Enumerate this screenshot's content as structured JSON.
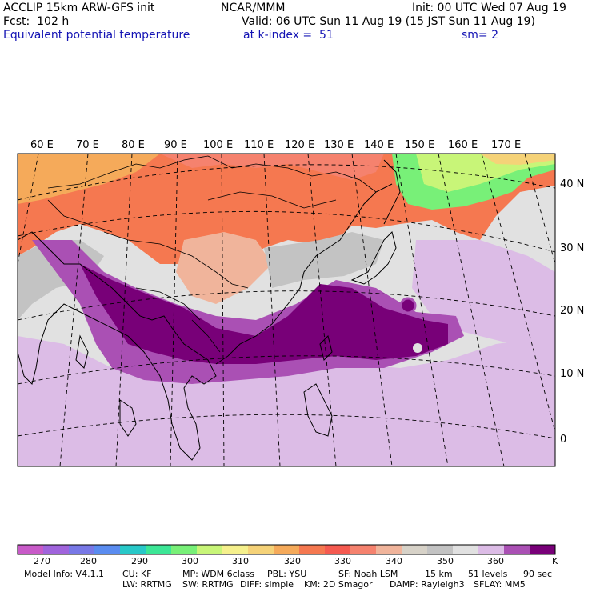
{
  "header": {
    "model_line": "ACCLIP 15km ARW-GFS init",
    "forecast": "Fcst:  102 h",
    "field": "Equivalent potential temperature",
    "center": "NCAR/MMM",
    "init": "Init: 00 UTC Wed 07 Aug 19",
    "valid": "Valid: 06 UTC Sun 11 Aug 19 (15 JST Sun 11 Aug 19)",
    "level": "at k-index =  51",
    "smoothing": "sm= 2"
  },
  "map": {
    "lon_labels": [
      "60 E",
      "70 E",
      "80 E",
      "90 E",
      "100 E",
      "110 E",
      "120 E",
      "130 E",
      "140 E",
      "150 E",
      "160 E",
      "170 E"
    ],
    "lat_labels": [
      "40 N",
      "30 N",
      "20 N",
      "10 N",
      "0"
    ]
  },
  "colorbar": {
    "tick_labels": [
      "270",
      "280",
      "290",
      "300",
      "310",
      "320",
      "330",
      "340",
      "350",
      "360"
    ],
    "unit": "K",
    "colors": [
      "#c85ac8",
      "#a064dc",
      "#7878e6",
      "#5a8cf0",
      "#28c8c8",
      "#3ce696",
      "#78f078",
      "#c8f578",
      "#f5f08c",
      "#f5d278",
      "#f5aa5a",
      "#f57850",
      "#f55a50",
      "#f5826e",
      "#f0b49b",
      "#d7d2c8",
      "#c3c3c3",
      "#e1e1e1",
      "#dcbce6",
      "#aa50b4",
      "#780078"
    ],
    "accent": "#1414b4"
  },
  "footer": {
    "line1": [
      "Model Info: V4.1.1",
      "CU: KF",
      "MP: WDM 6class",
      "PBL: YSU",
      "SF: Noah LSM",
      "15 km",
      "51 levels",
      "90 sec"
    ],
    "line2": [
      "LW: RRTMG",
      "SW: RRTMG",
      "DIFF: simple",
      "KM: 2D Smagor",
      "DAMP: Rayleigh3",
      "SFLAY: MM5"
    ]
  }
}
